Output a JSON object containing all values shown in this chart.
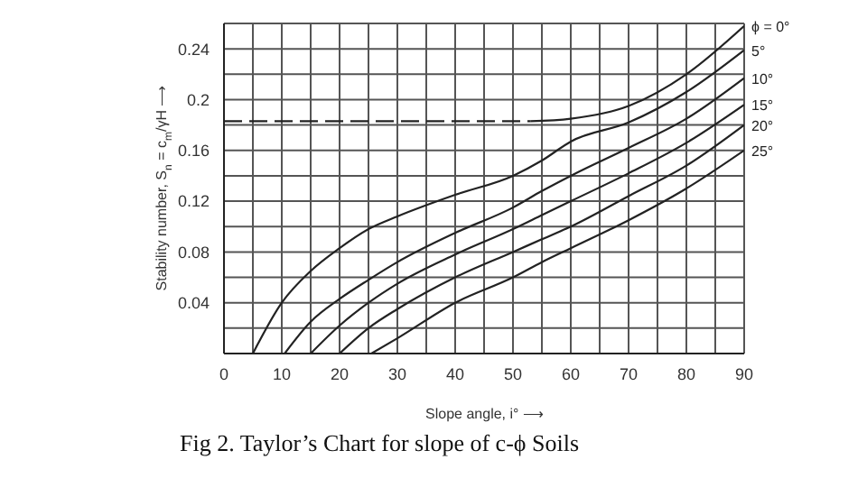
{
  "chart_data": {
    "type": "line",
    "title": "Fig 2. Taylor’s Chart for slope of c-ϕ Soils",
    "xlabel": "Slope angle, i° ⟶",
    "ylabel": "Stability number, S$_{n}$ = c$_{m}$/γH ⟶",
    "xlim": [
      0,
      90
    ],
    "ylim": [
      0,
      0.26
    ],
    "xticks": [
      0,
      {
        "value": 5,
        "label": null
      },
      10,
      {
        "value": 15,
        "label": null
      },
      20,
      {
        "value": 25,
        "label": null
      },
      30,
      {
        "value": 35,
        "label": null
      },
      40,
      {
        "value": 45,
        "label": null
      },
      50,
      {
        "value": 55,
        "label": null
      },
      60,
      {
        "value": 65,
        "label": null
      },
      70,
      {
        "value": 75,
        "label": null
      },
      80,
      {
        "value": 85,
        "label": null
      },
      90
    ],
    "yticks": [
      {
        "value": 0,
        "label": null
      },
      {
        "value": 0.02,
        "label": null
      },
      0.04,
      {
        "value": 0.06,
        "label": null
      },
      0.08,
      {
        "value": 0.1,
        "label": null
      },
      0.12,
      {
        "value": 0.14,
        "label": null
      },
      0.16,
      {
        "value": 0.18,
        "label": null
      },
      0.2,
      {
        "value": 0.22,
        "label": null
      },
      0.24,
      {
        "value": 0.26,
        "label": null
      }
    ],
    "grid": true,
    "legend": false,
    "marker": "none",
    "series": [
      {
        "color": "#222222",
        "line_style": "dashed",
        "x": [
          0,
          53
        ],
        "values": [
          0.183,
          0.183
        ]
      },
      {
        "name": "ϕ = 0°",
        "color": "#222222",
        "x": [
          53,
          60,
          70,
          80,
          90
        ],
        "values": [
          0.183,
          0.185,
          0.195,
          0.22,
          0.258
        ]
      },
      {
        "name": "5°",
        "color": "#222222",
        "x": [
          5,
          10,
          15,
          20,
          25,
          30,
          40,
          50,
          55,
          60,
          70,
          80,
          90
        ],
        "values": [
          0,
          0.04,
          0.065,
          0.083,
          0.098,
          0.108,
          0.125,
          0.14,
          0.152,
          0.167,
          0.182,
          0.206,
          0.239
        ]
      },
      {
        "name": "10°",
        "color": "#222222",
        "x": [
          10.5,
          15,
          20,
          25,
          30,
          40,
          50,
          55,
          60,
          70,
          80,
          90
        ],
        "values": [
          0,
          0.025,
          0.043,
          0.058,
          0.072,
          0.095,
          0.115,
          0.128,
          0.14,
          0.162,
          0.185,
          0.217
        ]
      },
      {
        "name": "15°",
        "color": "#222222",
        "x": [
          15,
          20,
          25,
          30,
          40,
          50,
          55,
          60,
          70,
          80,
          90
        ],
        "values": [
          0,
          0.022,
          0.04,
          0.055,
          0.078,
          0.098,
          0.109,
          0.12,
          0.142,
          0.166,
          0.196
        ]
      },
      {
        "name": "20°",
        "color": "#222222",
        "x": [
          20,
          25,
          30,
          40,
          50,
          55,
          60,
          70,
          80,
          90
        ],
        "values": [
          0,
          0.02,
          0.035,
          0.06,
          0.08,
          0.09,
          0.1,
          0.124,
          0.148,
          0.18
        ]
      },
      {
        "name": "25°",
        "color": "#222222",
        "x": [
          25.5,
          30,
          40,
          50,
          55,
          60,
          70,
          80,
          90
        ],
        "values": [
          0,
          0.012,
          0.04,
          0.06,
          0.072,
          0.083,
          0.105,
          0.13,
          0.16
        ]
      }
    ]
  }
}
